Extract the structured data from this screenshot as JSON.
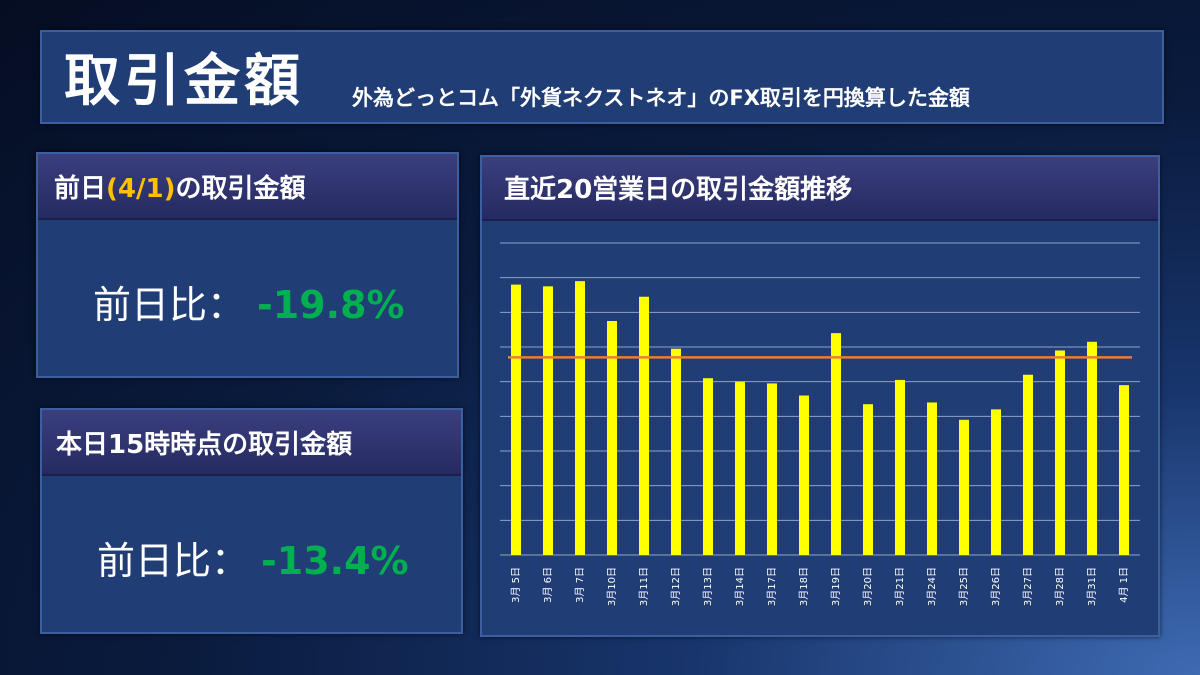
{
  "header": {
    "title": "取引金額",
    "subtitle": "外為どっとコム「外貨ネクストネオ」のFX取引を円換算した金額"
  },
  "panel_prev": {
    "title_pre": "前日",
    "title_date": "(4/1)",
    "title_post": "の取引金額",
    "label": "前日比：",
    "value": "-19.8%"
  },
  "panel_today": {
    "title": "本日15時時点の取引金額",
    "label": "前日比：",
    "value": "-13.4%"
  },
  "chart_panel": {
    "title": "直近20営業日の取引金額推移"
  },
  "chart_data": {
    "type": "bar",
    "title": "直近20営業日の取引金額推移",
    "categories": [
      "3月 5日",
      "3月 6日",
      "3月 7日",
      "3月10日",
      "3月11日",
      "3月12日",
      "3月13日",
      "3月14日",
      "3月17日",
      "3月18日",
      "3月19日",
      "3月20日",
      "3月21日",
      "3月24日",
      "3月25日",
      "3月26日",
      "3月27日",
      "3月28日",
      "3月31日",
      "4月 1日"
    ],
    "values": [
      7.8,
      7.75,
      7.9,
      6.75,
      7.45,
      5.95,
      5.1,
      5.0,
      4.95,
      4.6,
      6.4,
      4.35,
      5.05,
      4.4,
      3.9,
      4.2,
      5.2,
      5.9,
      6.15,
      4.9
    ],
    "reference_line": 5.7,
    "ylim": [
      0,
      9
    ],
    "y_ticks_labeled": false,
    "grid": true,
    "colors": {
      "bars": "#ffff00",
      "reference_line": "#ed7d31"
    }
  }
}
